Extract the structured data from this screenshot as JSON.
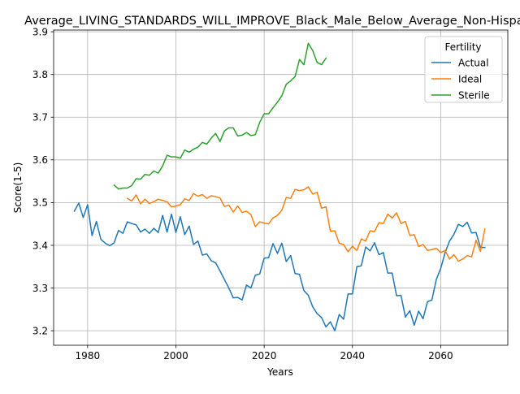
{
  "chart_data": {
    "type": "line",
    "title": "Average_LIVING_STANDARDS_WILL_IMPROVE_Black_Male_Below_Average_Non-Hispanic",
    "xlabel": "Years",
    "ylabel": "Score(1-5)",
    "xlim": [
      1972.3,
      2075.2
    ],
    "ylim": [
      3.166,
      3.904
    ],
    "xticks": [
      1980,
      2000,
      2020,
      2040,
      2060
    ],
    "yticks": [
      3.2,
      3.3,
      3.4,
      3.5,
      3.6,
      3.7,
      3.8,
      3.9
    ],
    "xtick_labels": [
      "1980",
      "2000",
      "2020",
      "2040",
      "2060"
    ],
    "ytick_labels": [
      "3.2",
      "3.3",
      "3.4",
      "3.5",
      "3.6",
      "3.7",
      "3.8",
      "3.9"
    ],
    "grid": true,
    "legend": {
      "title": "Fertility",
      "placement": "top-right"
    },
    "series": [
      {
        "name": "Actual",
        "color": "#1f77b4",
        "x": [
          1977,
          1978,
          1979,
          1980,
          1981,
          1982,
          1983,
          1984,
          1985,
          1986,
          1987,
          1988,
          1989,
          1990,
          1991,
          1992,
          1993,
          1994,
          1995,
          1996,
          1997,
          1998,
          1999,
          2000,
          2001,
          2002,
          2003,
          2004,
          2005,
          2006,
          2007,
          2008,
          2009,
          2010,
          2011,
          2012,
          2013,
          2014,
          2015,
          2016,
          2017,
          2018,
          2019,
          2020,
          2021,
          2022,
          2023,
          2024,
          2025,
          2026,
          2027,
          2028,
          2029,
          2030,
          2031,
          2032,
          2033,
          2034,
          2035,
          2036,
          2037,
          2038,
          2039,
          2040,
          2041,
          2042,
          2043,
          2044,
          2045,
          2046,
          2047,
          2048,
          2049,
          2050,
          2051,
          2052,
          2053,
          2054,
          2055,
          2056,
          2057,
          2058,
          2059,
          2060,
          2061,
          2062,
          2063,
          2064,
          2065,
          2066,
          2067,
          2068,
          2069,
          2070
        ],
        "values": [
          3.48,
          3.499,
          3.465,
          3.495,
          3.423,
          3.456,
          3.414,
          3.405,
          3.399,
          3.406,
          3.435,
          3.428,
          3.455,
          3.451,
          3.448,
          3.431,
          3.438,
          3.428,
          3.44,
          3.43,
          3.47,
          3.431,
          3.473,
          3.43,
          3.467,
          3.425,
          3.445,
          3.402,
          3.41,
          3.377,
          3.38,
          3.364,
          3.359,
          3.34,
          3.32,
          3.3,
          3.277,
          3.278,
          3.272,
          3.307,
          3.3,
          3.33,
          3.333,
          3.37,
          3.371,
          3.404,
          3.381,
          3.405,
          3.362,
          3.376,
          3.334,
          3.332,
          3.294,
          3.283,
          3.256,
          3.24,
          3.231,
          3.209,
          3.221,
          3.2,
          3.238,
          3.227,
          3.286,
          3.286,
          3.35,
          3.352,
          3.396,
          3.387,
          3.406,
          3.378,
          3.383,
          3.335,
          3.335,
          3.282,
          3.283,
          3.232,
          3.247,
          3.213,
          3.246,
          3.228,
          3.268,
          3.272,
          3.32,
          3.346,
          3.383,
          3.41,
          3.426,
          3.449,
          3.444,
          3.454,
          3.429,
          3.43,
          3.395,
          3.395
        ]
      },
      {
        "name": "Ideal",
        "color": "#ff7f0e",
        "x": [
          1989,
          1990,
          1991,
          1992,
          1993,
          1994,
          1995,
          1996,
          1997,
          1998,
          1999,
          2000,
          2001,
          2002,
          2003,
          2004,
          2005,
          2006,
          2007,
          2008,
          2009,
          2010,
          2011,
          2012,
          2013,
          2014,
          2015,
          2016,
          2017,
          2018,
          2019,
          2020,
          2021,
          2022,
          2023,
          2024,
          2025,
          2026,
          2027,
          2028,
          2029,
          2030,
          2031,
          2032,
          2033,
          2034,
          2035,
          2036,
          2037,
          2038,
          2039,
          2040,
          2041,
          2042,
          2043,
          2044,
          2045,
          2046,
          2047,
          2048,
          2049,
          2050,
          2051,
          2052,
          2053,
          2054,
          2055,
          2056,
          2057,
          2058,
          2059,
          2060,
          2061,
          2062,
          2063,
          2064,
          2065,
          2066,
          2067,
          2068,
          2069,
          2070
        ],
        "values": [
          3.51,
          3.504,
          3.518,
          3.497,
          3.508,
          3.498,
          3.502,
          3.508,
          3.505,
          3.502,
          3.49,
          3.492,
          3.495,
          3.509,
          3.505,
          3.521,
          3.515,
          3.519,
          3.51,
          3.516,
          3.514,
          3.511,
          3.491,
          3.494,
          3.478,
          3.492,
          3.477,
          3.48,
          3.472,
          3.444,
          3.455,
          3.452,
          3.45,
          3.464,
          3.47,
          3.482,
          3.512,
          3.51,
          3.531,
          3.528,
          3.53,
          3.537,
          3.52,
          3.524,
          3.487,
          3.49,
          3.433,
          3.434,
          3.405,
          3.402,
          3.385,
          3.398,
          3.388,
          3.415,
          3.41,
          3.434,
          3.432,
          3.453,
          3.451,
          3.473,
          3.464,
          3.476,
          3.451,
          3.456,
          3.423,
          3.425,
          3.397,
          3.402,
          3.388,
          3.39,
          3.393,
          3.383,
          3.388,
          3.368,
          3.378,
          3.363,
          3.368,
          3.376,
          3.373,
          3.412,
          3.386,
          3.438
        ]
      },
      {
        "name": "Sterile",
        "color": "#2ca02c",
        "x": [
          1986,
          1987,
          1988,
          1989,
          1990,
          1991,
          1992,
          1993,
          1994,
          1995,
          1996,
          1997,
          1998,
          1999,
          2000,
          2001,
          2002,
          2003,
          2004,
          2005,
          2006,
          2007,
          2008,
          2009,
          2010,
          2011,
          2012,
          2013,
          2014,
          2015,
          2016,
          2017,
          2018,
          2019,
          2020,
          2021,
          2022,
          2023,
          2024,
          2025,
          2026,
          2027,
          2028,
          2029,
          2030,
          2031,
          2032,
          2033,
          2034
        ],
        "values": [
          3.541,
          3.532,
          3.534,
          3.534,
          3.54,
          3.556,
          3.555,
          3.566,
          3.564,
          3.574,
          3.569,
          3.586,
          3.611,
          3.607,
          3.607,
          3.604,
          3.623,
          3.618,
          3.625,
          3.63,
          3.641,
          3.637,
          3.651,
          3.662,
          3.643,
          3.668,
          3.675,
          3.675,
          3.656,
          3.658,
          3.664,
          3.657,
          3.659,
          3.688,
          3.708,
          3.708,
          3.722,
          3.735,
          3.75,
          3.777,
          3.785,
          3.795,
          3.835,
          3.823,
          3.873,
          3.856,
          3.828,
          3.823,
          3.838
        ]
      }
    ]
  }
}
